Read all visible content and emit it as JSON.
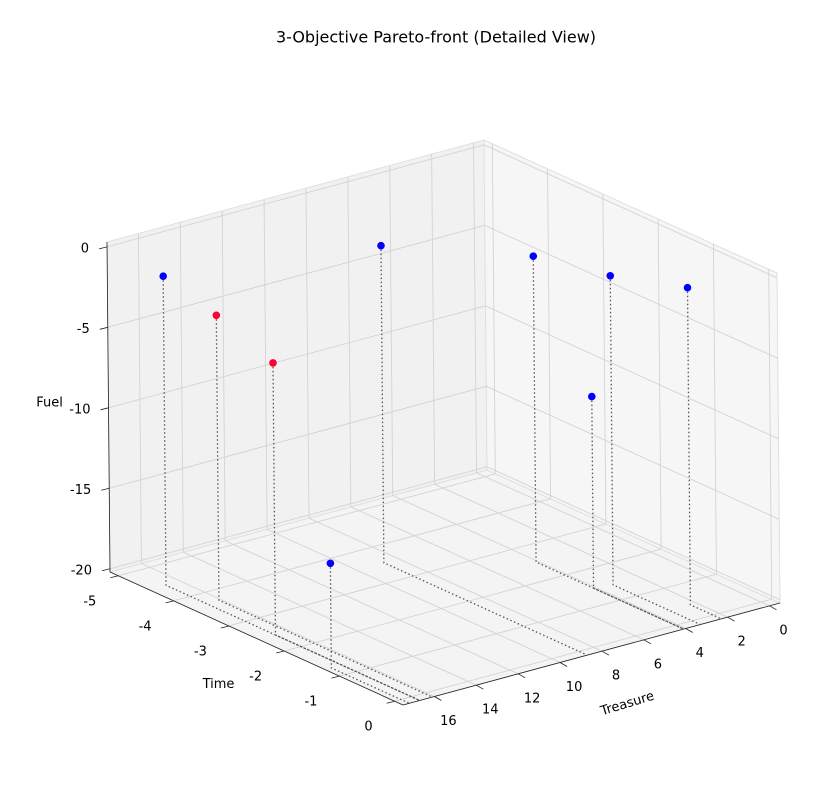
{
  "chart_data": {
    "type": "scatter3d",
    "title": "3-Objective Pareto-front (Detailed View)",
    "xlabel": "Treasure",
    "ylabel": "Time",
    "zlabel": "Fuel",
    "x": [
      16.7,
      16.1,
      16.7,
      17.2,
      8.7,
      4.1,
      4.1,
      3.3,
      2.3
    ],
    "y": [
      -4.44,
      -3.71,
      -2.46,
      -1.26,
      -3.53,
      -2.52,
      -1.48,
      -1.43,
      -0.41
    ],
    "z": [
      -1,
      -2.5,
      -3.3,
      -13.7,
      -0.5,
      -1.2,
      -8.3,
      -1.0,
      -0.5
    ],
    "colors": [
      "#0000ff",
      "#ff0033",
      "#ff0033",
      "#0000ff",
      "#0000ff",
      "#0000ff",
      "#0000ff",
      "#0000ff",
      "#0000ff"
    ],
    "xlim": [
      -0.5,
      17.5
    ],
    "ylim": [
      -5.15,
      0.15
    ],
    "zlim": [
      -20.2,
      0.3
    ],
    "xticks": [
      0,
      2,
      4,
      6,
      8,
      10,
      12,
      14,
      16
    ],
    "yticks": [
      -5,
      -4,
      -3,
      -2,
      -1,
      0
    ],
    "zticks": [
      -20,
      -15,
      -10,
      -5,
      0
    ],
    "grid": true,
    "drop_lines": true
  }
}
